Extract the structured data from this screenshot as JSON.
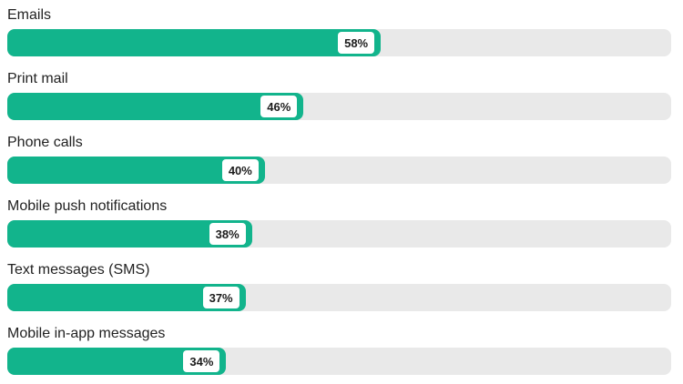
{
  "chart_data": {
    "type": "bar",
    "orientation": "horizontal",
    "categories": [
      "Emails",
      "Print mail",
      "Phone calls",
      "Mobile push notifications",
      "Text messages (SMS)",
      "Mobile in-app messages"
    ],
    "values": [
      58,
      46,
      40,
      38,
      37,
      34
    ],
    "value_labels": [
      "58%",
      "46%",
      "40%",
      "38%",
      "37%",
      "34%"
    ],
    "xlim": [
      0,
      100
    ],
    "grid": false,
    "legend": "none",
    "axis_labels_visible": false,
    "colors": {
      "bar": "#12b48c",
      "track": "#e9e9e9",
      "label_text": "#222222",
      "badge_background": "#ffffff",
      "badge_text": "#1c1c1c"
    }
  }
}
